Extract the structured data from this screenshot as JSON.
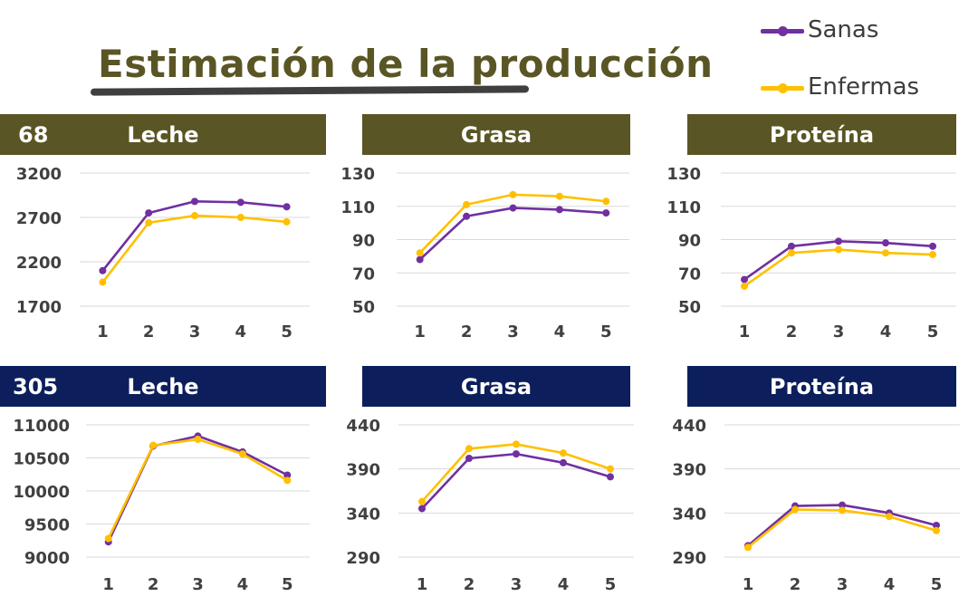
{
  "title": "Estimación de la producción",
  "legend": {
    "items": [
      {
        "label": "Sanas",
        "color": "#7030a0"
      },
      {
        "label": "Enfermas",
        "color": "#ffc000"
      }
    ]
  },
  "colors": {
    "olive": "#5a5524",
    "navy": "#0c1f5c"
  },
  "rows": [
    {
      "number": "68",
      "headers": [
        "Leche",
        "Grasa",
        "Proteína"
      ]
    },
    {
      "number": "305",
      "headers": [
        "Leche",
        "Grasa",
        "Proteína"
      ]
    }
  ],
  "chart_data": [
    {
      "type": "line",
      "title": "Leche",
      "x": [
        "1",
        "2",
        "3",
        "4",
        "5"
      ],
      "yticks": [
        1700,
        2200,
        2700,
        3200
      ],
      "ylim": [
        1700,
        3200
      ],
      "series": [
        {
          "name": "Sanas",
          "values": [
            2100,
            2750,
            2880,
            2870,
            2820
          ]
        },
        {
          "name": "Enfermas",
          "values": [
            1970,
            2640,
            2720,
            2700,
            2650
          ]
        }
      ]
    },
    {
      "type": "line",
      "title": "Grasa",
      "x": [
        "1",
        "2",
        "3",
        "4",
        "5"
      ],
      "yticks": [
        50,
        70,
        90,
        110,
        130
      ],
      "ylim": [
        50,
        130
      ],
      "series": [
        {
          "name": "Sanas",
          "values": [
            78,
            104,
            109,
            108,
            106
          ]
        },
        {
          "name": "Enfermas",
          "values": [
            82,
            111,
            117,
            116,
            113
          ]
        }
      ]
    },
    {
      "type": "line",
      "title": "Proteína",
      "x": [
        "1",
        "2",
        "3",
        "4",
        "5"
      ],
      "yticks": [
        50,
        70,
        90,
        110,
        130
      ],
      "ylim": [
        50,
        130
      ],
      "series": [
        {
          "name": "Sanas",
          "values": [
            66,
            86,
            89,
            88,
            86
          ]
        },
        {
          "name": "Enfermas",
          "values": [
            62,
            82,
            84,
            82,
            81
          ]
        }
      ]
    },
    {
      "type": "line",
      "title": "Leche",
      "x": [
        "1",
        "2",
        "3",
        "4",
        "5"
      ],
      "yticks": [
        9000,
        9500,
        10000,
        10500,
        11000
      ],
      "ylim": [
        9000,
        11000
      ],
      "series": [
        {
          "name": "Sanas",
          "values": [
            9230,
            10680,
            10830,
            10590,
            10240
          ]
        },
        {
          "name": "Enfermas",
          "values": [
            9280,
            10690,
            10780,
            10560,
            10160
          ]
        }
      ]
    },
    {
      "type": "line",
      "title": "Grasa",
      "x": [
        "1",
        "2",
        "3",
        "4",
        "5"
      ],
      "yticks": [
        290,
        340,
        390,
        440
      ],
      "ylim": [
        290,
        440
      ],
      "series": [
        {
          "name": "Sanas",
          "values": [
            345,
            402,
            407,
            397,
            381
          ]
        },
        {
          "name": "Enfermas",
          "values": [
            353,
            413,
            418,
            408,
            390
          ]
        }
      ]
    },
    {
      "type": "line",
      "title": "Proteína",
      "x": [
        "1",
        "2",
        "3",
        "4",
        "5"
      ],
      "yticks": [
        290,
        340,
        390,
        440
      ],
      "ylim": [
        290,
        440
      ],
      "series": [
        {
          "name": "Sanas",
          "values": [
            303,
            348,
            349,
            340,
            326
          ]
        },
        {
          "name": "Enfermas",
          "values": [
            301,
            344,
            343,
            336,
            320
          ]
        }
      ]
    }
  ]
}
